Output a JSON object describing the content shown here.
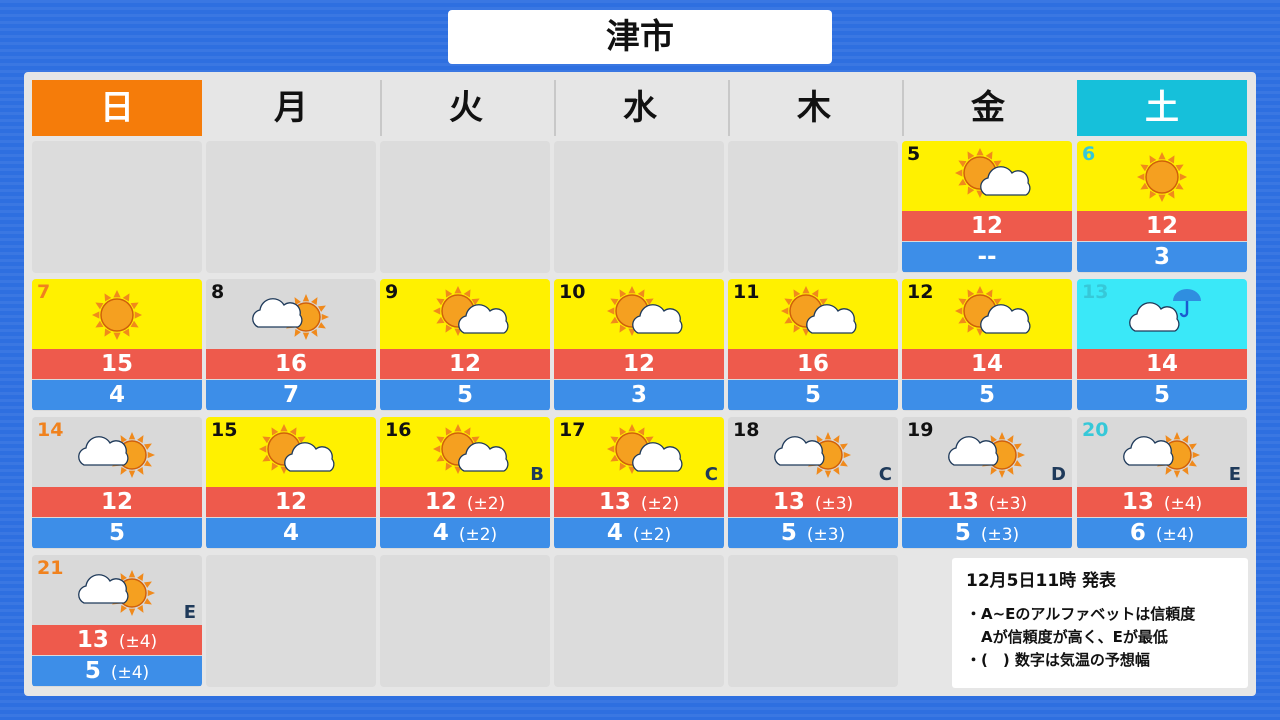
{
  "title": "津市",
  "weekdays": [
    "日",
    "月",
    "火",
    "水",
    "木",
    "金",
    "土"
  ],
  "colors": {
    "sunday": "#f57c0a",
    "saturday": "#16c0da",
    "yellow": "#fff100",
    "gray": "#d9d9d9",
    "rain": "#3ae8f8",
    "high": "#ee5a4c",
    "low": "#3d8ee8"
  },
  "weeks": [
    [
      null,
      null,
      null,
      null,
      null,
      {
        "date": "5",
        "weather": "sun-cloud",
        "high": "12",
        "low": "--"
      },
      {
        "date": "6",
        "weather": "sun",
        "high": "12",
        "low": "3"
      }
    ],
    [
      {
        "date": "7",
        "weather": "sun",
        "high": "15",
        "low": "4"
      },
      {
        "date": "8",
        "weather": "cloud-sun",
        "high": "16",
        "low": "7"
      },
      {
        "date": "9",
        "weather": "sun-cloud",
        "high": "12",
        "low": "5"
      },
      {
        "date": "10",
        "weather": "sun-cloud",
        "high": "12",
        "low": "3"
      },
      {
        "date": "11",
        "weather": "sun-cloud",
        "high": "16",
        "low": "5"
      },
      {
        "date": "12",
        "weather": "sun-cloud",
        "high": "14",
        "low": "5"
      },
      {
        "date": "13",
        "weather": "cloud-rain",
        "high": "14",
        "low": "5"
      }
    ],
    [
      {
        "date": "14",
        "weather": "cloud-sun",
        "high": "12",
        "low": "5"
      },
      {
        "date": "15",
        "weather": "sun-cloud",
        "high": "12",
        "low": "4"
      },
      {
        "date": "16",
        "weather": "sun-cloud",
        "high": "12",
        "high_range": "(±2)",
        "low": "4",
        "low_range": "(±2)",
        "reliability": "B"
      },
      {
        "date": "17",
        "weather": "sun-cloud",
        "high": "13",
        "high_range": "(±2)",
        "low": "4",
        "low_range": "(±2)",
        "reliability": "C"
      },
      {
        "date": "18",
        "weather": "cloud-sun",
        "high": "13",
        "high_range": "(±3)",
        "low": "5",
        "low_range": "(±3)",
        "reliability": "C"
      },
      {
        "date": "19",
        "weather": "cloud-sun",
        "high": "13",
        "high_range": "(±3)",
        "low": "5",
        "low_range": "(±3)",
        "reliability": "D"
      },
      {
        "date": "20",
        "weather": "cloud-sun",
        "high": "13",
        "high_range": "(±4)",
        "low": "6",
        "low_range": "(±4)",
        "reliability": "E"
      }
    ],
    [
      {
        "date": "21",
        "weather": "cloud-sun",
        "high": "13",
        "high_range": "(±4)",
        "low": "5",
        "low_range": "(±4)",
        "reliability": "E"
      },
      null,
      null,
      null,
      null
    ]
  ],
  "note": {
    "published": "12月5日11時 発表",
    "lines": [
      "・A~Eのアルファベットは信頼度",
      "　Aが信頼度が高く、Eが最低",
      "・(　) 数字は気温の予想幅"
    ]
  }
}
